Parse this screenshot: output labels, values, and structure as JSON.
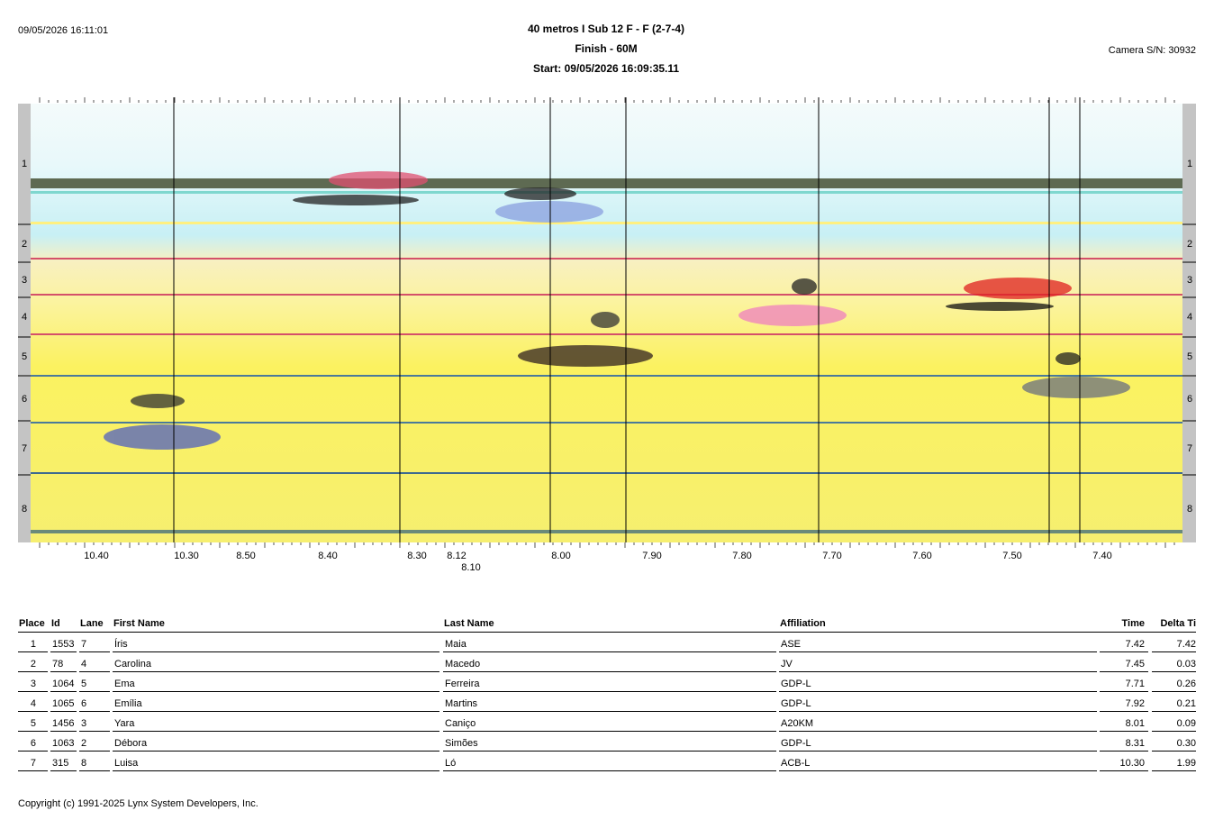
{
  "header": {
    "timestamp": "09/05/2026 16:11:01",
    "title": "40 metros I Sub 12 F - F (2-7-4)",
    "subtitle": "Finish - 60M",
    "start": "Start: 09/05/2026 16:09:35.11",
    "camera": "Camera S/N: 30932"
  },
  "photo": {
    "lanes": [
      "1",
      "2",
      "3",
      "4",
      "5",
      "6",
      "7",
      "8"
    ],
    "time_labels": [
      "10.40",
      "10.30",
      "8.50",
      "8.40",
      "8.30",
      "8.12",
      "8.10",
      "8.00",
      "7.90",
      "7.80",
      "7.70",
      "7.60",
      "7.50",
      "7.40"
    ]
  },
  "table": {
    "columns": [
      "Place",
      "Id",
      "Lane",
      "First Name",
      "Last Name",
      "Affiliation",
      "Time",
      "Delta Ti"
    ],
    "rows": [
      [
        "1",
        "1553",
        "7",
        "Íris",
        "Maia",
        "ASE",
        "7.42",
        "7.42"
      ],
      [
        "2",
        "78",
        "4",
        "Carolina",
        "Macedo",
        "JV",
        "7.45",
        "0.03"
      ],
      [
        "3",
        "1064",
        "5",
        "Ema",
        "Ferreira",
        "GDP-L",
        "7.71",
        "0.26"
      ],
      [
        "4",
        "1065",
        "6",
        "Emília",
        "Martins",
        "GDP-L",
        "7.92",
        "0.21"
      ],
      [
        "5",
        "1456",
        "3",
        "Yara",
        "Caniço",
        "A20KM",
        "8.01",
        "0.09"
      ],
      [
        "6",
        "1063",
        "2",
        "Débora",
        "Simões",
        "GDP-L",
        "8.31",
        "0.30"
      ],
      [
        "7",
        "315",
        "8",
        "Luisa",
        "Ló",
        "ACB-L",
        "10.30",
        "1.99"
      ]
    ]
  },
  "footer": {
    "copyright": "Copyright (c) 1991-2025 Lynx System Developers, Inc."
  }
}
